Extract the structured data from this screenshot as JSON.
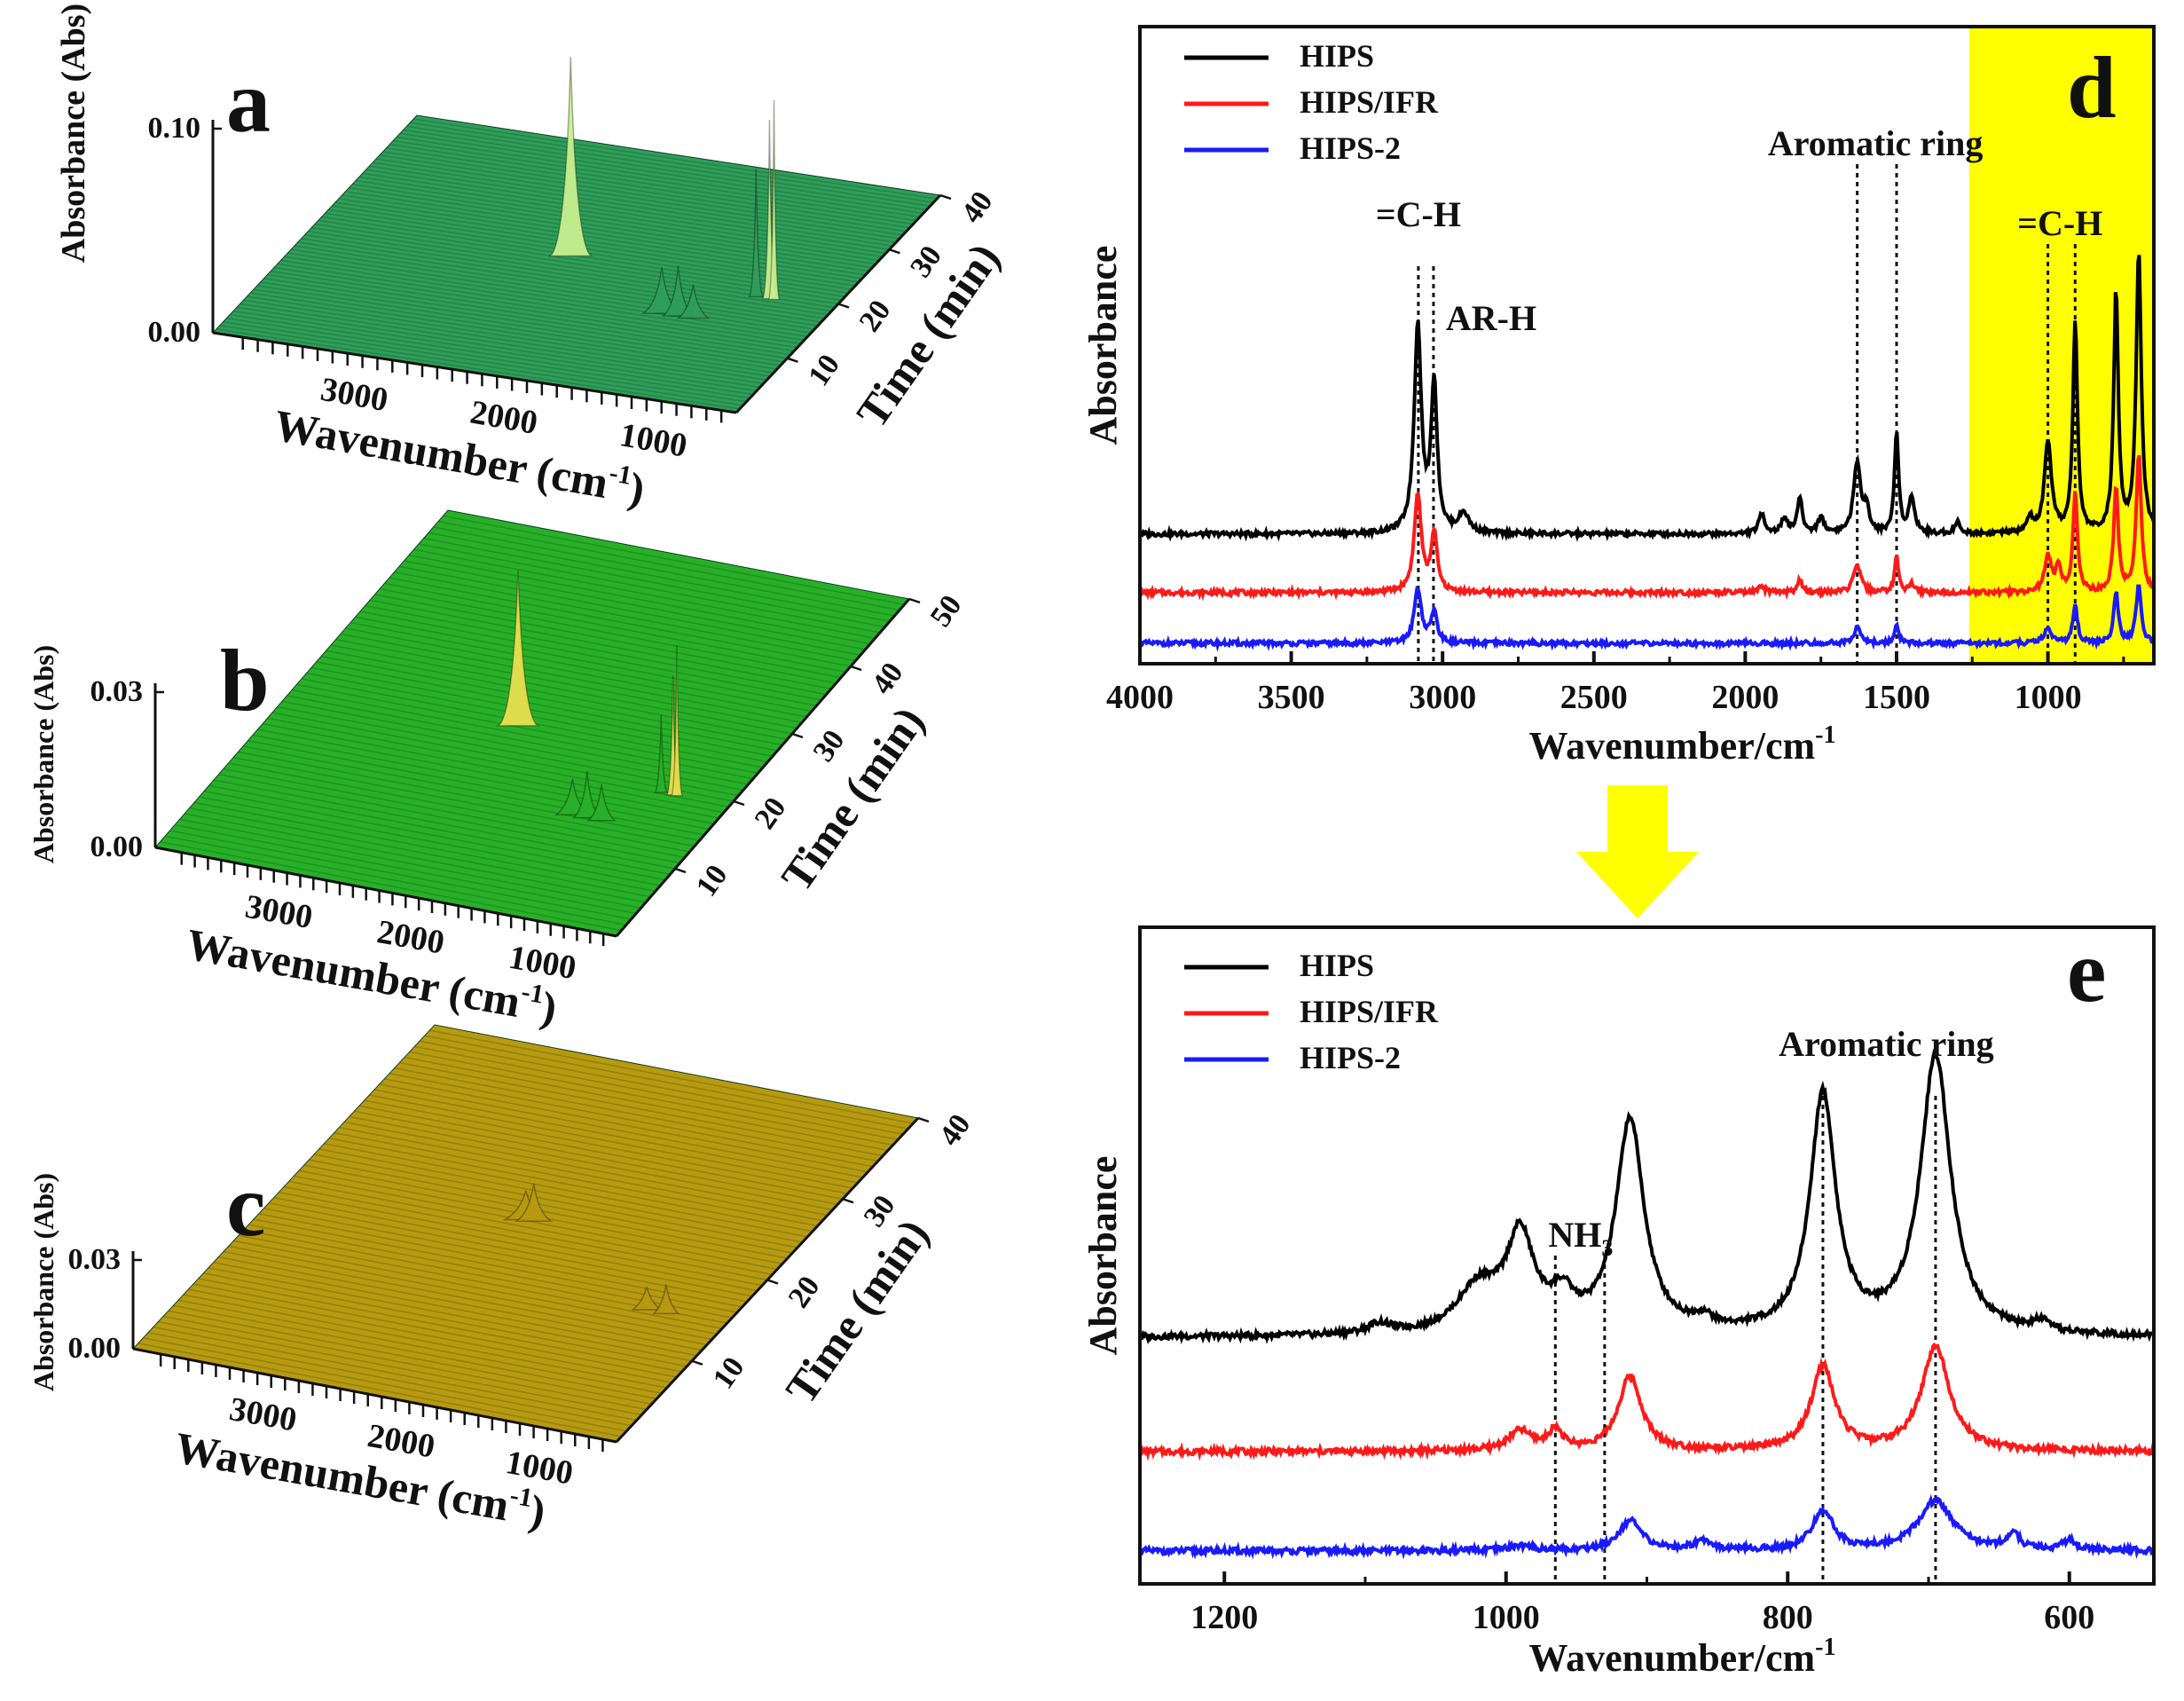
{
  "panel_labels": {
    "a": "a",
    "b": "b",
    "c": "c",
    "d": "d",
    "e": "e"
  },
  "colors": {
    "hips": "#000000",
    "hips_ifr": "#ff1a1a",
    "hips2": "#1a1aff",
    "highlight": "#ffff00",
    "arrow": "#ffff00"
  },
  "chart_data": [
    {
      "id": "a",
      "type": "surface3d",
      "zlabel": "Absorbance (Abs)",
      "xlabel_main": "Wavenumber (cm",
      "xlabel_sup": "-1",
      "xlabel_end": ")",
      "ylabel": "Time (min)",
      "x_ticks": [
        "3000",
        "2000",
        "1000"
      ],
      "y_ticks": [
        "10",
        "20",
        "30",
        "40"
      ],
      "z_ticks": [
        "0.10",
        "0.00"
      ],
      "zlim": [
        0,
        0.1
      ],
      "surface_color": "#2f9e5a",
      "peak_color": "#c8f090",
      "peaks": [
        {
          "wavenumber": 2358,
          "time": 22,
          "height": 0.095,
          "width": 55
        },
        {
          "wavenumber": 1510,
          "time": 15,
          "height": 0.02,
          "width": 50
        },
        {
          "wavenumber": 1400,
          "time": 15,
          "height": 0.022,
          "width": 40
        },
        {
          "wavenumber": 1300,
          "time": 15,
          "height": 0.014,
          "width": 40
        },
        {
          "wavenumber": 1050,
          "time": 20,
          "height": 0.06,
          "width": 18
        },
        {
          "wavenumber": 960,
          "time": 20,
          "height": 0.085,
          "width": 18
        },
        {
          "wavenumber": 930,
          "time": 20,
          "height": 0.095,
          "width": 14
        }
      ]
    },
    {
      "id": "b",
      "type": "surface3d",
      "zlabel": "Absorbance (Abs)",
      "xlabel_main": "Wavenumber (cm",
      "xlabel_sup": "-1",
      "xlabel_end": ")",
      "ylabel": "Time (min)",
      "x_ticks": [
        "3000",
        "2000",
        "1000"
      ],
      "y_ticks": [
        "10",
        "20",
        "30",
        "40",
        "50"
      ],
      "z_ticks": [
        "0.03",
        "0.00"
      ],
      "zlim": [
        0,
        0.03
      ],
      "surface_color": "#28b028",
      "peak_color": "#e8e050",
      "peaks": [
        {
          "wavenumber": 2358,
          "time": 25,
          "height": 0.029,
          "width": 60
        },
        {
          "wavenumber": 1500,
          "time": 15,
          "height": 0.006,
          "width": 50
        },
        {
          "wavenumber": 1390,
          "time": 15,
          "height": 0.008,
          "width": 40
        },
        {
          "wavenumber": 1280,
          "time": 15,
          "height": 0.006,
          "width": 40
        },
        {
          "wavenumber": 1050,
          "time": 20,
          "height": 0.014,
          "width": 18
        },
        {
          "wavenumber": 960,
          "time": 20,
          "height": 0.022,
          "width": 18
        },
        {
          "wavenumber": 930,
          "time": 20,
          "height": 0.028,
          "width": 14
        }
      ]
    },
    {
      "id": "c",
      "type": "surface3d",
      "zlabel": "Absorbance (Abs)",
      "xlabel_main": "Wavenumber (cm",
      "xlabel_sup": "-1",
      "xlabel_end": ")",
      "ylabel": "Time (min)",
      "x_ticks": [
        "3000",
        "2000",
        "1000"
      ],
      "y_ticks": [
        "10",
        "20",
        "30",
        "40"
      ],
      "z_ticks": [
        "0.03",
        "0.00"
      ],
      "zlim": [
        0,
        0.03
      ],
      "surface_color": "#b89a10",
      "peak_color": "#e07030",
      "peaks": [
        {
          "wavenumber": 2358,
          "time": 22,
          "height": 0.008,
          "width": 60
        },
        {
          "wavenumber": 2300,
          "time": 22,
          "height": 0.011,
          "width": 50
        },
        {
          "wavenumber": 1100,
          "time": 15,
          "height": 0.006,
          "width": 40
        },
        {
          "wavenumber": 960,
          "time": 15,
          "height": 0.008,
          "width": 35
        }
      ]
    },
    {
      "id": "d",
      "type": "line",
      "xlabel": "Wavenumber/cm",
      "xlabel_sup": "-1",
      "ylabel": "Absorbance",
      "xlim": [
        4000,
        650
      ],
      "x_ticks": [
        4000,
        3500,
        3000,
        2500,
        2000,
        1500,
        1000
      ],
      "x_tick_labels": [
        "4000",
        "3500",
        "3000",
        "2500",
        "2000",
        "1500",
        "1000"
      ],
      "legend": [
        "HIPS",
        "HIPS/IFR",
        "HIPS-2"
      ],
      "highlight_range": [
        1260,
        650
      ],
      "annotations": [
        {
          "text": "=C-H",
          "x": 3080
        },
        {
          "text": "AR-H",
          "x": 3030
        },
        {
          "text": "Aromatic ring",
          "x": 1570
        },
        {
          "text": "=C-H",
          "x": 960
        }
      ],
      "dashed_lines": [
        3080,
        3030,
        1630,
        1500,
        1000,
        910
      ],
      "series": [
        {
          "name": "HIPS",
          "baseline": 0.28,
          "scale": 1.0,
          "peaks": [
            [
              3082,
              0.53,
              14
            ],
            [
              3028,
              0.38,
              12
            ],
            [
              2930,
              0.05,
              20
            ],
            [
              1945,
              0.05,
              12
            ],
            [
              1870,
              0.04,
              12
            ],
            [
              1820,
              0.09,
              10
            ],
            [
              1750,
              0.04,
              12
            ],
            [
              1630,
              0.18,
              14
            ],
            [
              1600,
              0.06,
              10
            ],
            [
              1500,
              0.26,
              8
            ],
            [
              1450,
              0.09,
              12
            ],
            [
              1300,
              0.03,
              10
            ],
            [
              1060,
              0.04,
              10
            ],
            [
              1000,
              0.23,
              14
            ],
            [
              910,
              0.54,
              9
            ],
            [
              775,
              0.62,
              9
            ],
            [
              700,
              0.72,
              10
            ]
          ]
        },
        {
          "name": "HIPS/IFR",
          "baseline": 0.13,
          "scale": 1.0,
          "peaks": [
            [
              3082,
              0.25,
              14
            ],
            [
              3028,
              0.15,
              12
            ],
            [
              1945,
              0.015,
              12
            ],
            [
              1820,
              0.03,
              10
            ],
            [
              1630,
              0.07,
              14
            ],
            [
              1500,
              0.09,
              8
            ],
            [
              1450,
              0.02,
              12
            ],
            [
              1000,
              0.09,
              14
            ],
            [
              965,
              0.06,
              10
            ],
            [
              910,
              0.25,
              9
            ],
            [
              775,
              0.27,
              9
            ],
            [
              700,
              0.35,
              10
            ]
          ]
        },
        {
          "name": "HIPS-2",
          "baseline": 0.0,
          "scale": 1.0,
          "peaks": [
            [
              3082,
              0.14,
              14
            ],
            [
              3028,
              0.08,
              12
            ],
            [
              1630,
              0.04,
              14
            ],
            [
              1500,
              0.05,
              8
            ],
            [
              1000,
              0.04,
              14
            ],
            [
              910,
              0.1,
              9
            ],
            [
              775,
              0.13,
              9
            ],
            [
              700,
              0.15,
              10
            ]
          ]
        }
      ]
    },
    {
      "id": "e",
      "type": "line",
      "xlabel": "Wavenumber/cm",
      "xlabel_sup": "-1",
      "ylabel": "Absorbance",
      "xlim": [
        1260,
        540
      ],
      "x_ticks": [
        1200,
        1000,
        800,
        600
      ],
      "x_tick_labels": [
        "1200",
        "1000",
        "800",
        "600"
      ],
      "legend": [
        "HIPS",
        "HIPS/IFR",
        "HIPS-2"
      ],
      "annotations": [
        {
          "text": "NH",
          "sub": "3",
          "x": 947
        },
        {
          "text": "Aromatic ring",
          "x": 730
        }
      ],
      "dashed_lines": [
        965,
        930,
        775,
        695
      ],
      "series": [
        {
          "name": "HIPS",
          "baseline": 0.43,
          "scale": 1.0,
          "peaks": [
            [
              1020,
              0.09,
              18
            ],
            [
              990,
              0.19,
              12
            ],
            [
              960,
              0.06,
              10
            ],
            [
              912,
              0.43,
              12
            ],
            [
              860,
              0.02,
              8
            ],
            [
              775,
              0.48,
              11
            ],
            [
              695,
              0.56,
              13
            ],
            [
              1090,
              0.02,
              10
            ],
            [
              620,
              0.02,
              6
            ]
          ]
        },
        {
          "name": "HIPS/IFR",
          "baseline": 0.2,
          "scale": 1.0,
          "peaks": [
            [
              990,
              0.04,
              10
            ],
            [
              965,
              0.04,
              6
            ],
            [
              912,
              0.15,
              10
            ],
            [
              775,
              0.17,
              10
            ],
            [
              695,
              0.21,
              12
            ]
          ]
        },
        {
          "name": "HIPS-2",
          "baseline": 0.0,
          "scale": 1.0,
          "peaks": [
            [
              990,
              0.01,
              10
            ],
            [
              912,
              0.06,
              10
            ],
            [
              860,
              0.02,
              8
            ],
            [
              775,
              0.08,
              9
            ],
            [
              695,
              0.1,
              15
            ],
            [
              640,
              0.03,
              6
            ],
            [
              600,
              0.02,
              6
            ]
          ]
        }
      ]
    }
  ]
}
